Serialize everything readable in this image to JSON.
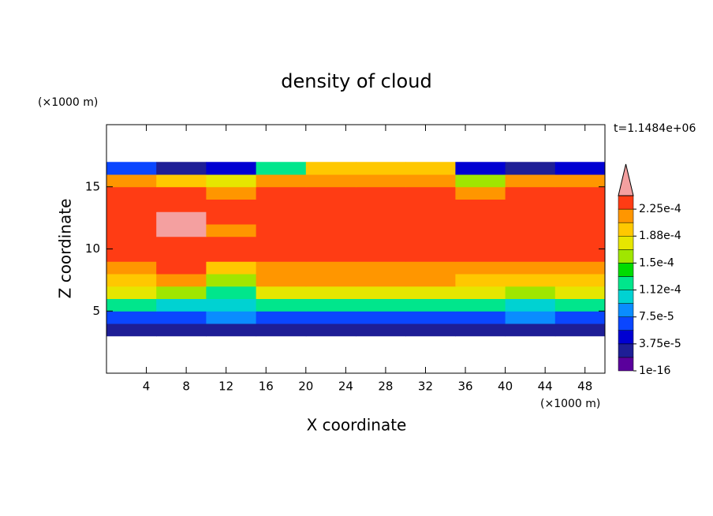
{
  "chart_data": {
    "type": "contour",
    "title": "density of cloud",
    "xlabel": "X coordinate",
    "ylabel": "Z coordinate",
    "xunit": "(×1000 m)",
    "yunit": "(×1000 m)",
    "annotation": "t=1.1484e+06",
    "xlim": [
      0,
      50
    ],
    "xticks": [
      4,
      8,
      12,
      16,
      20,
      24,
      28,
      32,
      36,
      40,
      44,
      48
    ],
    "ylim": [
      0,
      20
    ],
    "yticks": [
      5,
      10,
      15
    ],
    "x": [
      2.5,
      7.5,
      12.5,
      17.5,
      22.5,
      27.5,
      32.5,
      37.5,
      42.5,
      47.5
    ],
    "y": [
      3.5,
      4.5,
      5.5,
      6.5,
      7.5,
      8.5,
      9.5,
      10.5,
      11.5,
      12.5,
      13.5,
      14.5,
      15.5,
      16.5
    ],
    "z": [
      [
        3e-05,
        3e-05,
        3e-05,
        3e-05,
        3e-05,
        3e-05,
        3e-05,
        3e-05,
        3e-05,
        3e-05
      ],
      [
        6e-05,
        7e-05,
        8e-05,
        7e-05,
        7e-05,
        7e-05,
        7e-05,
        7e-05,
        8e-05,
        6e-05
      ],
      [
        0.00012,
        0.00011,
        0.0001,
        0.00013,
        0.00013,
        0.00013,
        0.00013,
        0.00012,
        0.0001,
        0.00012
      ],
      [
        0.00017,
        0.00016,
        0.00013,
        0.00018,
        0.00018,
        0.00018,
        0.00018,
        0.00017,
        0.00015,
        0.00017
      ],
      [
        0.0002,
        0.00021,
        0.00016,
        0.00021,
        0.00021,
        0.00021,
        0.00021,
        0.0002,
        0.00019,
        0.0002
      ],
      [
        0.00022,
        0.00023,
        0.0002,
        0.00022,
        0.00022,
        0.00022,
        0.00022,
        0.00022,
        0.00022,
        0.00022
      ],
      [
        0.00023,
        0.00024,
        0.00023,
        0.00023,
        0.00023,
        0.00023,
        0.00023,
        0.00023,
        0.00023,
        0.00023
      ],
      [
        0.00024,
        0.00024,
        0.00023,
        0.00024,
        0.00024,
        0.00024,
        0.00024,
        0.00024,
        0.00024,
        0.00024
      ],
      [
        0.00024,
        0.00025,
        0.00022,
        0.00024,
        0.00024,
        0.00024,
        0.00024,
        0.00024,
        0.00024,
        0.00024
      ],
      [
        0.00024,
        0.00025,
        0.00023,
        0.00024,
        0.00024,
        0.00024,
        0.00024,
        0.00024,
        0.00024,
        0.00024
      ],
      [
        0.00024,
        0.00024,
        0.00023,
        0.00024,
        0.00024,
        0.00024,
        0.00024,
        0.00024,
        0.00024,
        0.00024
      ],
      [
        0.00023,
        0.00023,
        0.00021,
        0.00023,
        0.00023,
        0.00023,
        0.00023,
        0.00022,
        0.00023,
        0.00023
      ],
      [
        0.00022,
        0.0002,
        0.00017,
        0.00021,
        0.00022,
        0.00022,
        0.00022,
        0.00015,
        0.00022,
        0.00022
      ],
      [
        6e-05,
        2e-05,
        5e-05,
        0.00012,
        0.00019,
        0.00019,
        0.00019,
        5e-05,
        2e-05,
        5e-05
      ]
    ],
    "levels": [
      1e-16,
      1.875e-05,
      3.75e-05,
      5.625e-05,
      7.5e-05,
      9.375e-05,
      0.0001125,
      0.00013125,
      0.00015,
      0.00016875,
      0.0001875,
      0.00020625,
      0.000225,
      0.00024375
    ],
    "colors": [
      "#5a009c",
      "#1e1e96",
      "#0000d2",
      "#0a46ff",
      "#0a8cff",
      "#00d2d2",
      "#00e68c",
      "#00dc00",
      "#a0e600",
      "#e6e600",
      "#ffc800",
      "#ff9600",
      "#ff3c14"
    ],
    "extend_color": "#f4a0a0",
    "colorbar_ticks": [
      {
        "value": 1e-16,
        "label": "1e-16"
      },
      {
        "value": 3.75e-05,
        "label": "3.75e-5"
      },
      {
        "value": 7.5e-05,
        "label": "7.5e-5"
      },
      {
        "value": 0.0001125,
        "label": "1.12e-4"
      },
      {
        "value": 0.00015,
        "label": "1.5e-4"
      },
      {
        "value": 0.0001875,
        "label": "1.88e-4"
      },
      {
        "value": 0.000225,
        "label": "2.25e-4"
      }
    ]
  }
}
